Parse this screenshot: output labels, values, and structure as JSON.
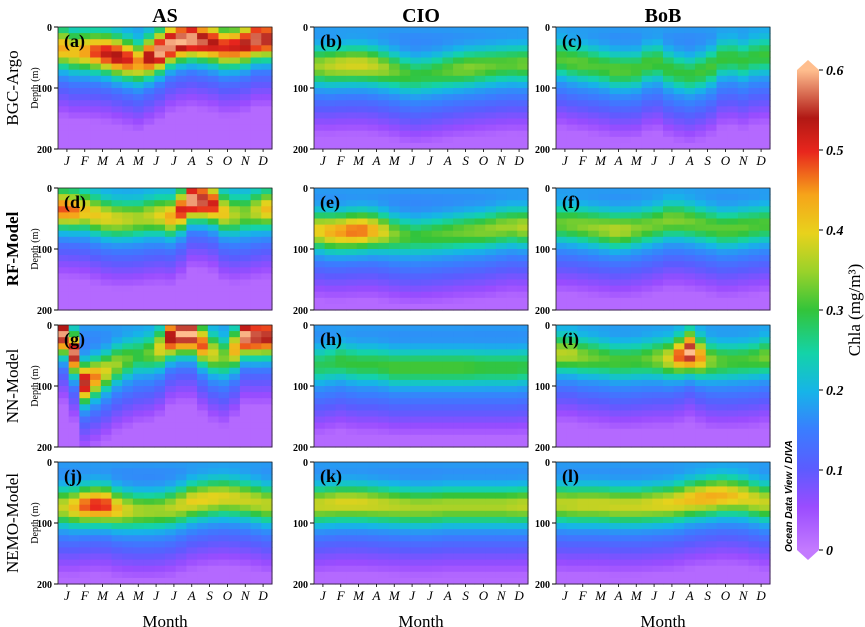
{
  "chart_data": {
    "type": "heatmap",
    "columns": [
      "AS",
      "CIO",
      "BoB"
    ],
    "rows": [
      "BGC-Argo",
      "RF-Model",
      "NN-Model",
      "NEMO-Model"
    ],
    "panels": [
      {
        "label": "(a)",
        "row": "BGC-Argo",
        "column": "AS",
        "dcm_depth_m": [
          40,
          40,
          42,
          50,
          58,
          45,
          25,
          20,
          25,
          35,
          28,
          15
        ],
        "peak_chla": [
          0.4,
          0.45,
          0.52,
          0.55,
          0.46,
          0.6,
          0.6,
          0.6,
          0.55,
          0.5,
          0.55,
          0.6
        ]
      },
      {
        "label": "(b)",
        "row": "BGC-Argo",
        "column": "CIO",
        "dcm_depth_m": [
          65,
          63,
          62,
          65,
          72,
          80,
          77,
          72,
          68,
          65,
          62,
          60
        ],
        "peak_chla": [
          0.36,
          0.38,
          0.39,
          0.37,
          0.33,
          0.3,
          0.3,
          0.32,
          0.34,
          0.33,
          0.32,
          0.32
        ]
      },
      {
        "label": "(c)",
        "row": "BGC-Argo",
        "column": "BoB",
        "dcm_depth_m": [
          55,
          60,
          65,
          72,
          70,
          55,
          72,
          78,
          70,
          48,
          55,
          45
        ],
        "peak_chla": [
          0.32,
          0.32,
          0.31,
          0.32,
          0.31,
          0.31,
          0.3,
          0.3,
          0.31,
          0.3,
          0.3,
          0.3
        ]
      },
      {
        "label": "(d)",
        "row": "RF-Model",
        "column": "AS",
        "dcm_depth_m": [
          35,
          38,
          48,
          52,
          50,
          45,
          48,
          20,
          22,
          45,
          42,
          35
        ],
        "peak_chla": [
          0.5,
          0.42,
          0.4,
          0.38,
          0.36,
          0.38,
          0.45,
          0.6,
          0.55,
          0.38,
          0.34,
          0.4
        ]
      },
      {
        "label": "(e)",
        "row": "RF-Model",
        "column": "CIO",
        "dcm_depth_m": [
          72,
          72,
          70,
          70,
          76,
          80,
          78,
          75,
          72,
          70,
          65,
          62
        ],
        "peak_chla": [
          0.42,
          0.45,
          0.48,
          0.42,
          0.34,
          0.3,
          0.31,
          0.32,
          0.33,
          0.34,
          0.35,
          0.35
        ]
      },
      {
        "label": "(f)",
        "row": "RF-Model",
        "column": "BoB",
        "dcm_depth_m": [
          58,
          62,
          66,
          70,
          66,
          60,
          52,
          56,
          62,
          68,
          64,
          60
        ],
        "peak_chla": [
          0.33,
          0.34,
          0.35,
          0.37,
          0.34,
          0.33,
          0.34,
          0.33,
          0.32,
          0.32,
          0.32,
          0.31
        ]
      },
      {
        "label": "(g)",
        "row": "NN-Model",
        "column": "AS",
        "dcm_depth_m": [
          15,
          95,
          80,
          60,
          50,
          45,
          15,
          15,
          45,
          55,
          18,
          20
        ],
        "peak_chla": [
          0.6,
          0.55,
          0.4,
          0.34,
          0.3,
          0.34,
          0.6,
          0.6,
          0.4,
          0.32,
          0.6,
          0.55
        ]
      },
      {
        "label": "(h)",
        "row": "NN-Model",
        "column": "CIO",
        "dcm_depth_m": [
          65,
          60,
          65,
          65,
          70,
          70,
          70,
          70,
          70,
          70,
          70,
          70
        ],
        "peak_chla": [
          0.28,
          0.3,
          0.3,
          0.3,
          0.31,
          0.31,
          0.31,
          0.31,
          0.31,
          0.3,
          0.3,
          0.3
        ]
      },
      {
        "label": "(i)",
        "row": "NN-Model",
        "column": "BoB",
        "dcm_depth_m": [
          45,
          52,
          55,
          60,
          58,
          55,
          55,
          45,
          58,
          60,
          58,
          55
        ],
        "peak_chla": [
          0.38,
          0.34,
          0.32,
          0.31,
          0.31,
          0.33,
          0.4,
          0.6,
          0.35,
          0.31,
          0.31,
          0.32
        ]
      },
      {
        "label": "(j)",
        "row": "NEMO-Model",
        "column": "AS",
        "dcm_depth_m": [
          75,
          72,
          70,
          78,
          80,
          80,
          75,
          65,
          60,
          58,
          62,
          68
        ],
        "peak_chla": [
          0.38,
          0.48,
          0.52,
          0.4,
          0.36,
          0.35,
          0.37,
          0.4,
          0.4,
          0.39,
          0.38,
          0.37
        ]
      },
      {
        "label": "(k)",
        "row": "NEMO-Model",
        "column": "CIO",
        "dcm_depth_m": [
          70,
          68,
          68,
          70,
          72,
          74,
          74,
          72,
          72,
          72,
          72,
          72
        ],
        "peak_chla": [
          0.38,
          0.39,
          0.39,
          0.38,
          0.37,
          0.36,
          0.36,
          0.36,
          0.36,
          0.36,
          0.36,
          0.37
        ]
      },
      {
        "label": "(l)",
        "row": "NEMO-Model",
        "column": "BoB",
        "dcm_depth_m": [
          70,
          70,
          70,
          72,
          72,
          70,
          68,
          62,
          58,
          55,
          58,
          65
        ],
        "peak_chla": [
          0.37,
          0.38,
          0.38,
          0.38,
          0.38,
          0.39,
          0.4,
          0.42,
          0.44,
          0.43,
          0.4,
          0.38
        ]
      }
    ],
    "months": [
      "J",
      "F",
      "M",
      "A",
      "M",
      "J",
      "J",
      "A",
      "S",
      "O",
      "N",
      "D"
    ],
    "xlabel": "Month",
    "ylabel": "Depth (m)",
    "yticks": [
      0,
      100,
      200
    ],
    "ylim": [
      200,
      0
    ],
    "colorbar": {
      "label": "Chla (mg/m³)",
      "ticks": [
        "0",
        "0.1",
        "0.2",
        "0.3",
        "0.4",
        "0.5",
        "0.6"
      ],
      "range": [
        0,
        0.6
      ],
      "credit": "Ocean Data View / DIVA"
    }
  }
}
